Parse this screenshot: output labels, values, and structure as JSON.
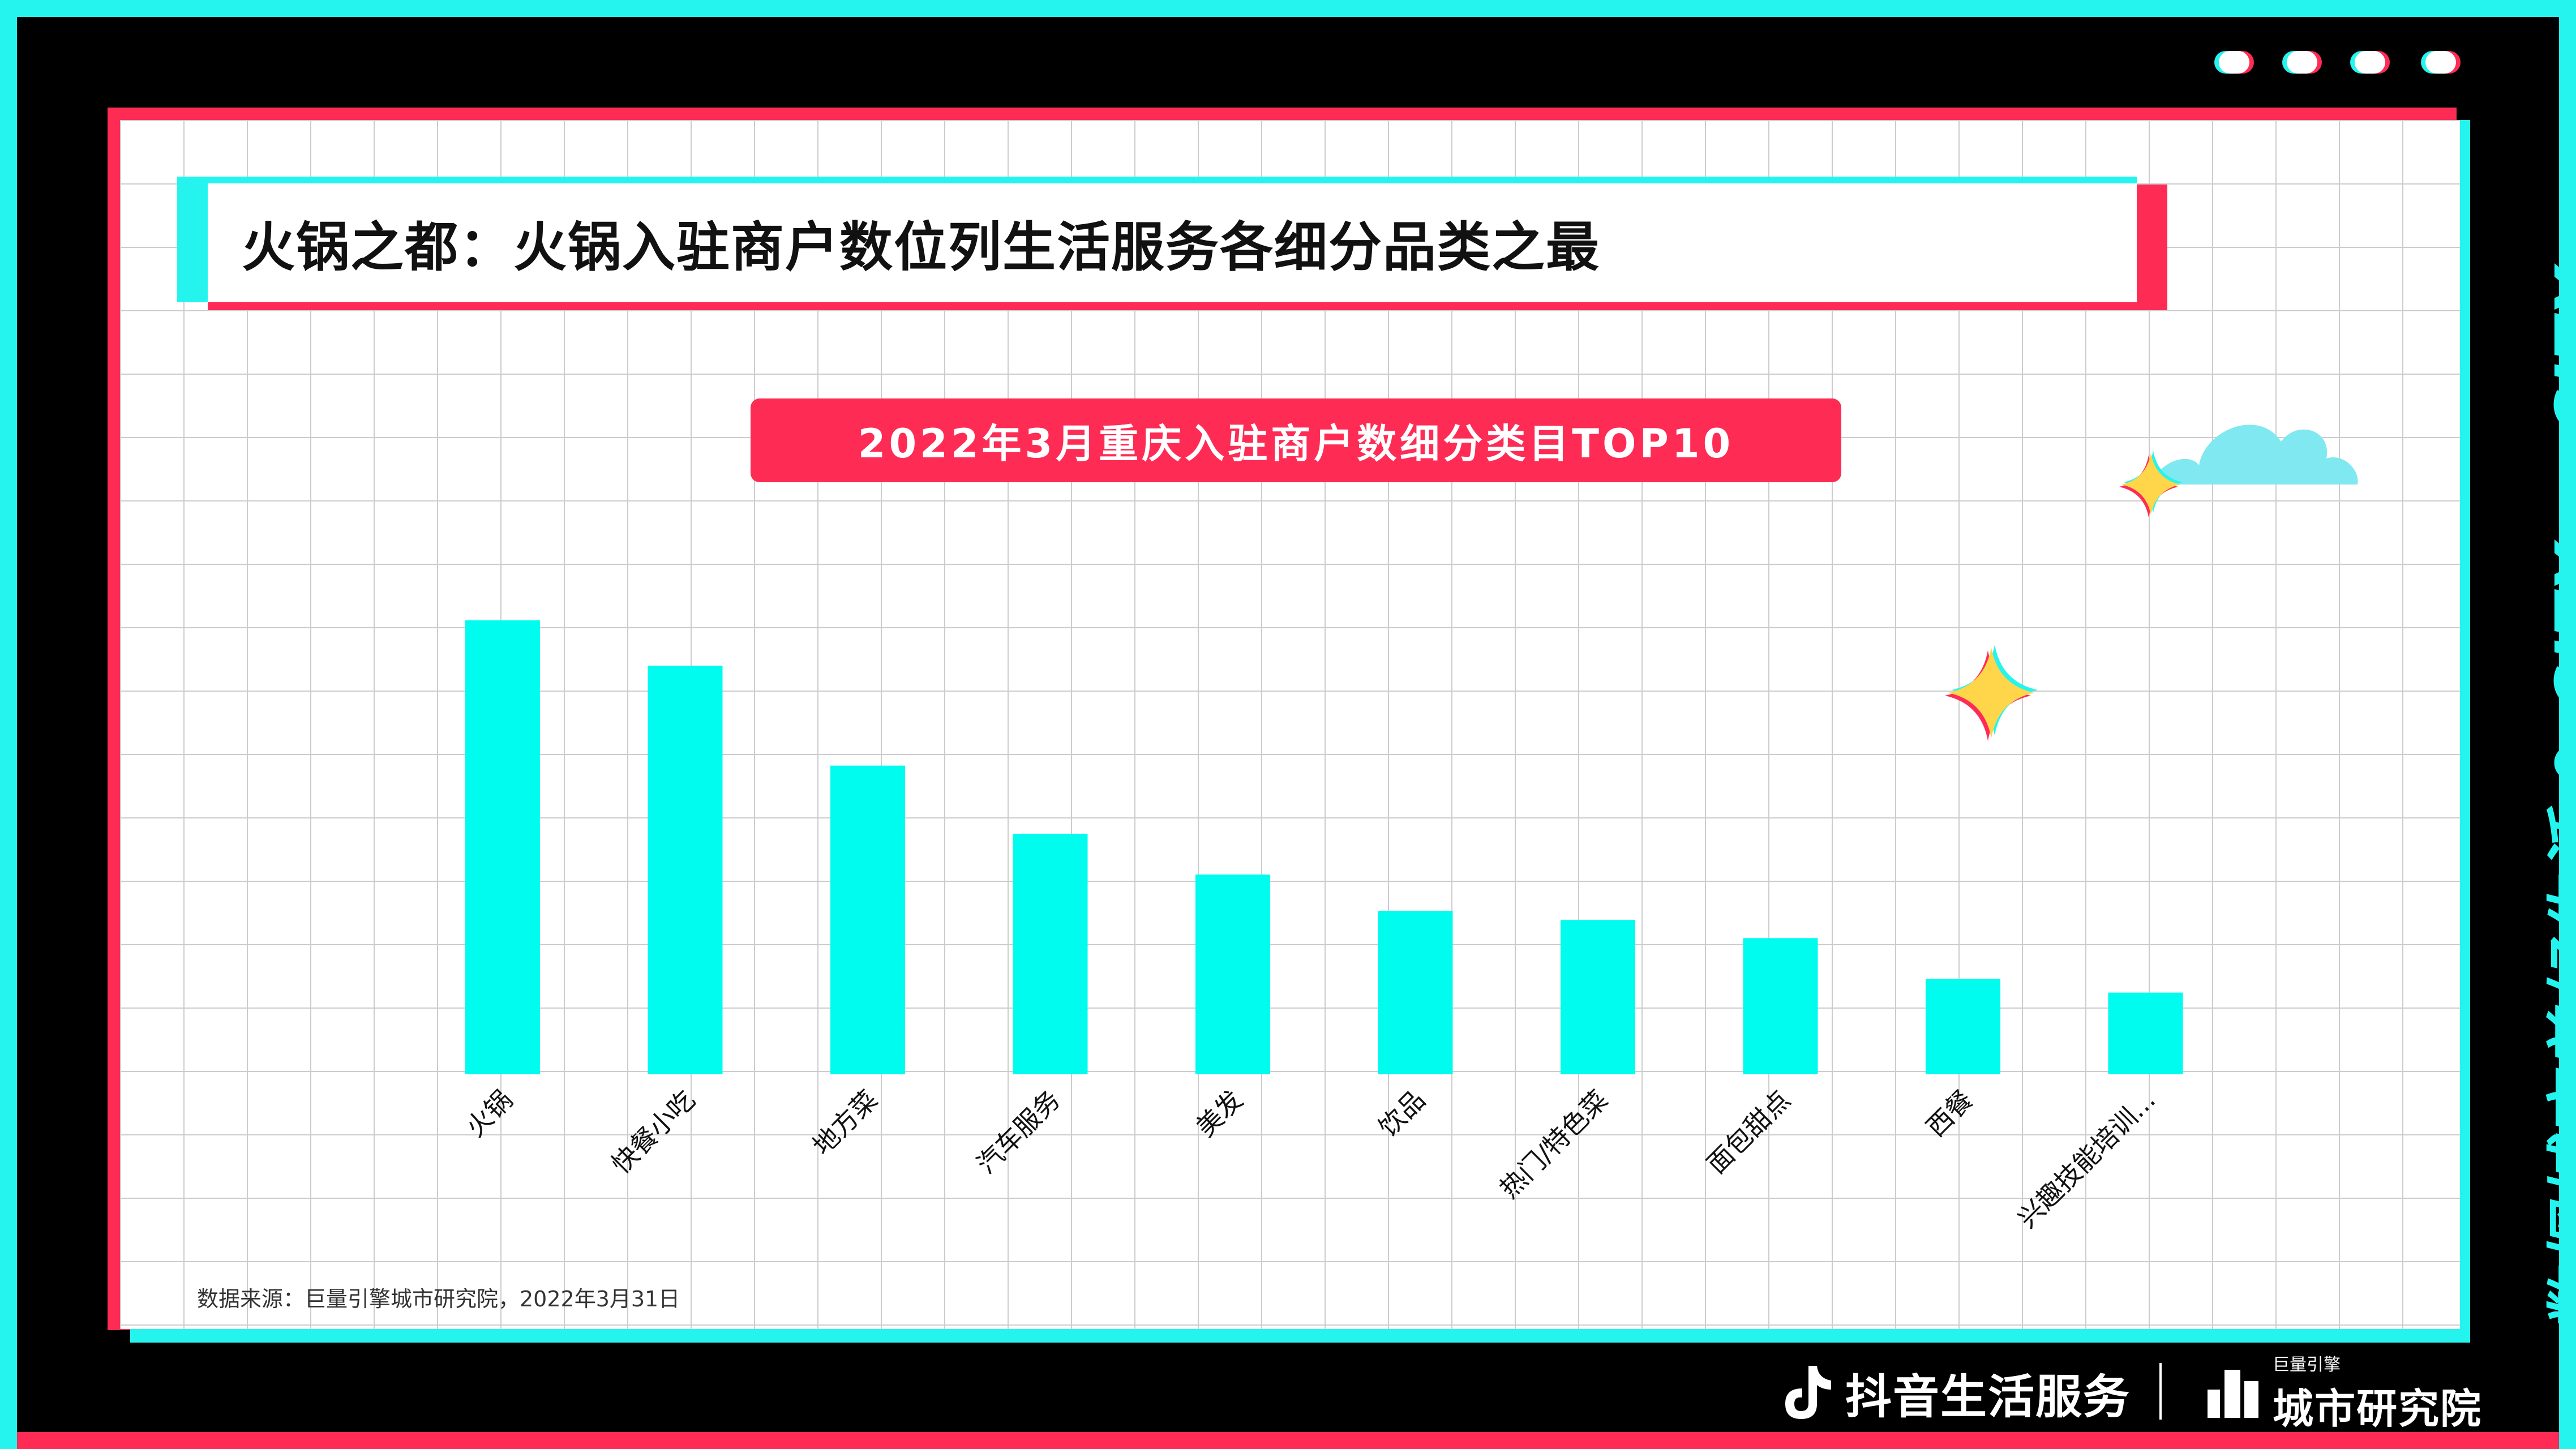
{
  "title": "火锅之都：火锅入驻商户数位列生活服务各细分品类之最",
  "chart_banner": "2022年3月重庆入驻商户数细分类目TOP10",
  "source": "数据来源：巨量引擎城市研究院，2022年3月31日",
  "side_text": "数探城市美好生活 ⚲ CITY ···CITY",
  "footer": {
    "brand1": "抖音生活服务",
    "brand2_small": "巨量引擎",
    "brand2_big": "城市研究院"
  },
  "colors": {
    "accent_cyan": "#25f4ee",
    "accent_red": "#fe2c55",
    "bar": "#00fbef"
  },
  "chart_data": {
    "type": "bar",
    "title": "2022年3月重庆入驻商户数细分类目TOP10",
    "categories": [
      "火锅",
      "快餐小吃",
      "地方菜",
      "汽车服务",
      "美发",
      "饮品",
      "热门/特色菜",
      "面包甜点",
      "西餐",
      "兴趣技能培训..."
    ],
    "values": [
      100,
      90,
      68,
      53,
      44,
      36,
      34,
      30,
      21,
      18
    ],
    "ylim": [
      0,
      100
    ],
    "xlabel": "",
    "ylabel": "",
    "grid": true,
    "legend": "none"
  }
}
